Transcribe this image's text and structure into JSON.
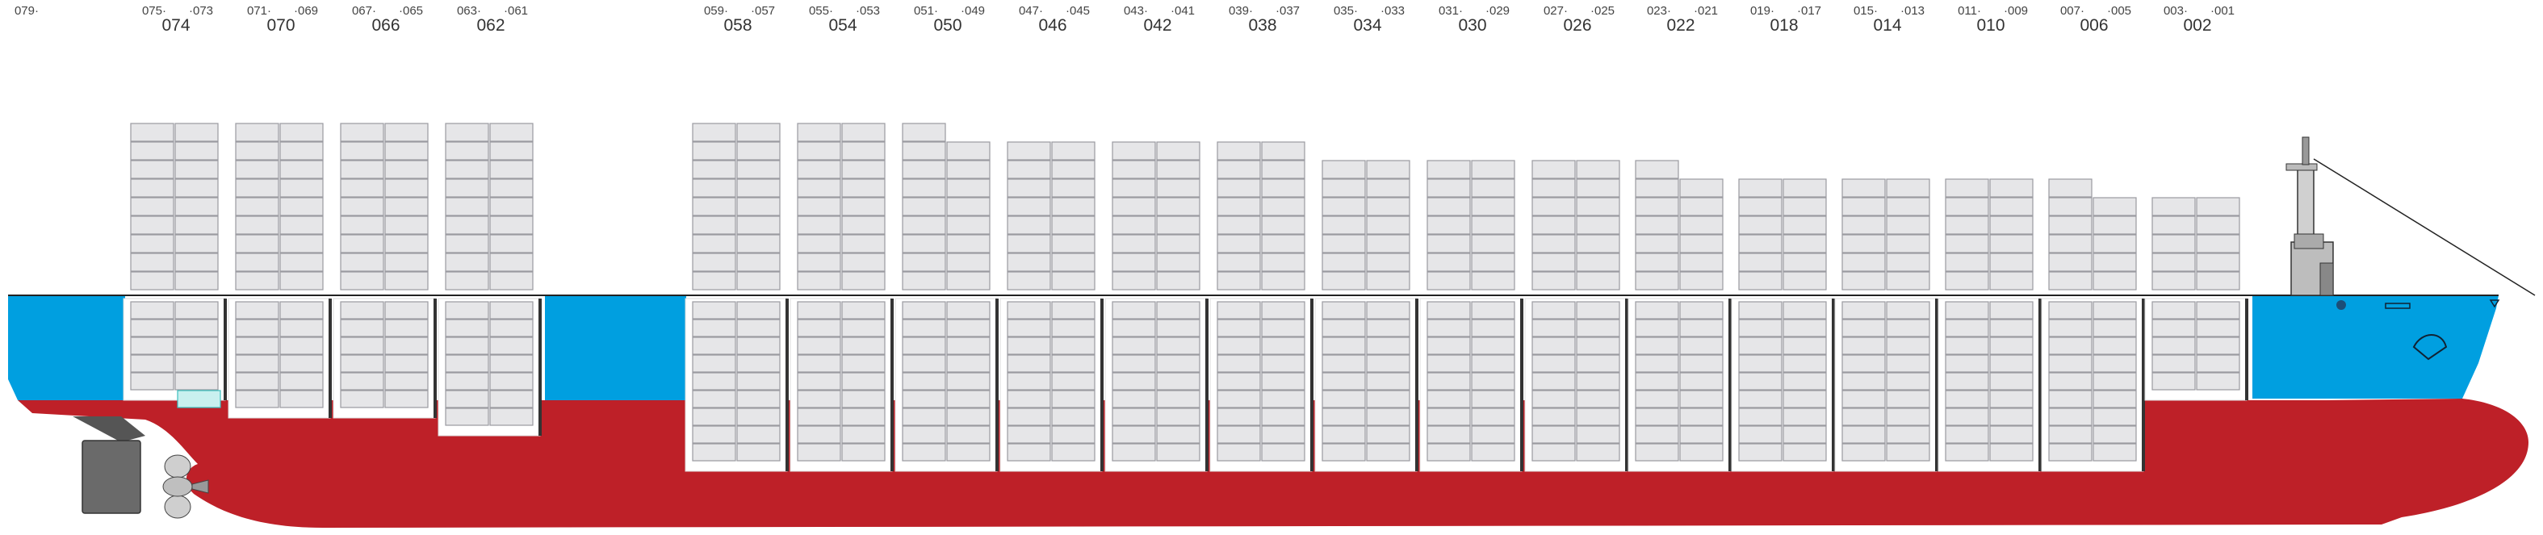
{
  "diagram": {
    "description_visible": false,
    "colors": {
      "hull_upper": "#009fe0",
      "hull_lower": "#be2028",
      "container_fill": "#e6e6e8",
      "container_stroke": "#9a9aa0",
      "highlight_fill": "#c8f0ef",
      "highlight_stroke": "#3bbfbd"
    },
    "bay_labels": [
      {
        "odd_left": "079·",
        "odd_right": "",
        "even": ""
      },
      {
        "odd_left": "075·",
        "odd_right": "·073",
        "even": "074"
      },
      {
        "odd_left": "071·",
        "odd_right": "·069",
        "even": "070"
      },
      {
        "odd_left": "067·",
        "odd_right": "·065",
        "even": "066"
      },
      {
        "odd_left": "063·",
        "odd_right": "·061",
        "even": "062"
      },
      {
        "odd_left": "059·",
        "odd_right": "·057",
        "even": "058"
      },
      {
        "odd_left": "055·",
        "odd_right": "·053",
        "even": "054"
      },
      {
        "odd_left": "051·",
        "odd_right": "·049",
        "even": "050"
      },
      {
        "odd_left": "047·",
        "odd_right": "·045",
        "even": "046"
      },
      {
        "odd_left": "043·",
        "odd_right": "·041",
        "even": "042"
      },
      {
        "odd_left": "039·",
        "odd_right": "·037",
        "even": "038"
      },
      {
        "odd_left": "035·",
        "odd_right": "·033",
        "even": "034"
      },
      {
        "odd_left": "031·",
        "odd_right": "·029",
        "even": "030"
      },
      {
        "odd_left": "027·",
        "odd_right": "·025",
        "even": "026"
      },
      {
        "odd_left": "023·",
        "odd_right": "·021",
        "even": "022"
      },
      {
        "odd_left": "019·",
        "odd_right": "·017",
        "even": "018"
      },
      {
        "odd_left": "015·",
        "odd_right": "·013",
        "even": "014"
      },
      {
        "odd_left": "011·",
        "odd_right": "·009",
        "even": "010"
      },
      {
        "odd_left": "007·",
        "odd_right": "·005",
        "even": "006"
      },
      {
        "odd_left": "003·",
        "odd_right": "·001",
        "even": "002"
      }
    ],
    "deck_stacks": [
      {
        "bay": "074",
        "tiers": 9,
        "top_row_cols": 2
      },
      {
        "bay": "070",
        "tiers": 9,
        "top_row_cols": 2
      },
      {
        "bay": "066",
        "tiers": 9,
        "top_row_cols": 2
      },
      {
        "bay": "062",
        "tiers": 9,
        "top_row_cols": 2
      },
      {
        "bay": "058",
        "tiers": 9,
        "top_row_cols": 2
      },
      {
        "bay": "054",
        "tiers": 9,
        "top_row_cols": 2
      },
      {
        "bay": "050",
        "tiers": 9,
        "top_row_cols": 1
      },
      {
        "bay": "046",
        "tiers": 8,
        "top_row_cols": 2
      },
      {
        "bay": "042",
        "tiers": 8,
        "top_row_cols": 2
      },
      {
        "bay": "038",
        "tiers": 8,
        "top_row_cols": 2
      },
      {
        "bay": "034",
        "tiers": 7,
        "top_row_cols": 2
      },
      {
        "bay": "030",
        "tiers": 7,
        "top_row_cols": 2
      },
      {
        "bay": "026",
        "tiers": 7,
        "top_row_cols": 2
      },
      {
        "bay": "022",
        "tiers": 7,
        "top_row_cols": 1
      },
      {
        "bay": "018",
        "tiers": 6,
        "top_row_cols": 2
      },
      {
        "bay": "014",
        "tiers": 6,
        "top_row_cols": 2
      },
      {
        "bay": "010",
        "tiers": 6,
        "top_row_cols": 2
      },
      {
        "bay": "006",
        "tiers": 6,
        "top_row_cols": 1
      },
      {
        "bay": "002",
        "tiers": 5,
        "top_row_cols": 2
      }
    ],
    "hold_stacks": [
      {
        "bay": "074",
        "tiers": 5
      },
      {
        "bay": "070",
        "tiers": 6
      },
      {
        "bay": "066",
        "tiers": 6
      },
      {
        "bay": "062",
        "tiers": 7
      },
      {
        "bay": "058",
        "tiers": 9
      },
      {
        "bay": "054",
        "tiers": 9
      },
      {
        "bay": "050",
        "tiers": 9
      },
      {
        "bay": "046",
        "tiers": 9
      },
      {
        "bay": "042",
        "tiers": 9
      },
      {
        "bay": "038",
        "tiers": 9
      },
      {
        "bay": "034",
        "tiers": 9
      },
      {
        "bay": "030",
        "tiers": 9
      },
      {
        "bay": "026",
        "tiers": 9
      },
      {
        "bay": "022",
        "tiers": 9
      },
      {
        "bay": "018",
        "tiers": 9
      },
      {
        "bay": "014",
        "tiers": 9
      },
      {
        "bay": "010",
        "tiers": 9
      },
      {
        "bay": "006",
        "tiers": 9
      },
      {
        "bay": "002",
        "tiers": 5
      }
    ]
  }
}
